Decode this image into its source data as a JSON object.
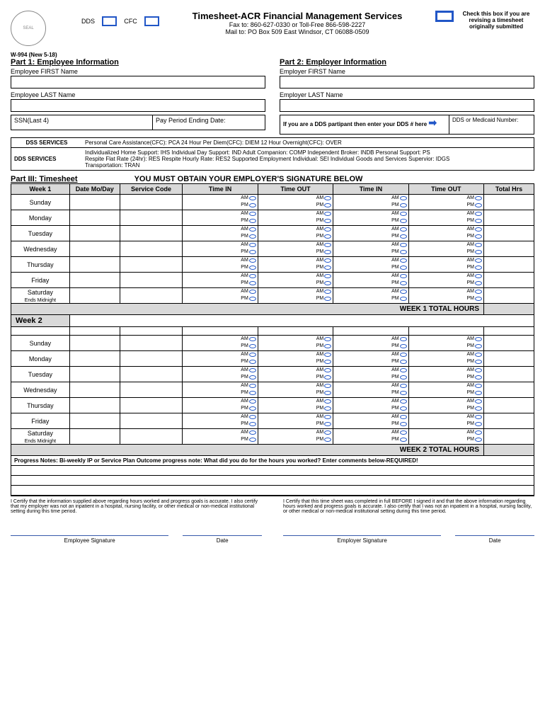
{
  "header": {
    "title": "Timesheet-ACR Financial Management Services",
    "fax_line": "Fax to: 860-627-0330 or Toll-Free 866-598-2227",
    "mail_line": "Mail to: PO Box 509 East Windsor, CT 06088-0509",
    "form_id": "W-994 (New 5-18)",
    "dds_label": "DDS",
    "cfc_label": "CFC",
    "revise_text": "Check this box if you are revising a timesheet originally submitted"
  },
  "part1": {
    "title": "Part 1: Employee Information",
    "first": "Employee FIRST Name",
    "last": "Employee LAST Name",
    "ssn": "SSN(Last 4)",
    "payperiod": "Pay Period Ending Date:"
  },
  "part2": {
    "title": "Part 2: Employer Information",
    "first": "Employer FIRST Name",
    "last": "Employer LAST Name",
    "dds_partip": "If you are a DDS partipant then enter your DDS # here",
    "dds_num": "DDS or Medicaid Number:"
  },
  "services": {
    "dss_label": "DSS SERVICES",
    "dss_content": "Personal Care Assistance(CFC): PCA   24 Hour Per Diem(CFC): DIEM   12 Hour Overnight(CFC): OVER",
    "dds_label": "DDS SERVICES",
    "dds_line1": "Individualized Home Support: IHS  Individual Day Support: IND  Adult Companion: COMP  Independent Broker: INDB  Personal Support: PS",
    "dds_line2": "Respite Flat Rate (24hr): RES   Respite Hourly Rate: RES2  Supported Employment Individual: SEI  Individual Goods and Services Supervior: IDGS",
    "dds_line3": "Transportation: TRAN"
  },
  "part3": {
    "title": "Part III: Timesheet",
    "warn": "YOU MUST OBTAIN YOUR EMPLOYER'S SIGNATURE BELOW",
    "headers": {
      "week1": "Week 1",
      "date": "Date Mo/Day",
      "code": "Service Code",
      "timein": "Time IN",
      "timeout": "Time OUT",
      "total": "Total Hrs"
    },
    "days": [
      "Sunday",
      "Monday",
      "Tuesday",
      "Wednesday",
      "Thursday",
      "Friday",
      "Saturday Ends Midnight"
    ],
    "am": "AM",
    "pm": "PM",
    "week1_total": "WEEK 1 TOTAL HOURS",
    "week2": "Week 2",
    "week2_total": "WEEK 2 TOTAL HOURS"
  },
  "progress": {
    "label": "Progress Notes:",
    "text": "Bi-weekly IP or Service Plan Outcome progress note: What did you do for the hours you worked? Enter comments below-REQUIRED!"
  },
  "cert": {
    "employee": "I Certify that the information supplied above regarding hours worked and progress goals is accurate. I also certify that my employer was not an inpatient in a hospital, nursing facility, or other medical or non-medical institutional setting during this time period.",
    "employer": "I Certify that this time sheet was completed in full BEFORE I signed it and that the above information regarding hours worked and progress goals is accurate. I also certify that I was not an inpatient in a hospital, nursing facility, or other medical or non-medical institutional setting during this time period."
  },
  "sig": {
    "emp_sig": "Employee Signature",
    "emp_date": "Date",
    "employer_sig": "Employer Signature",
    "employer_date": "Date"
  }
}
